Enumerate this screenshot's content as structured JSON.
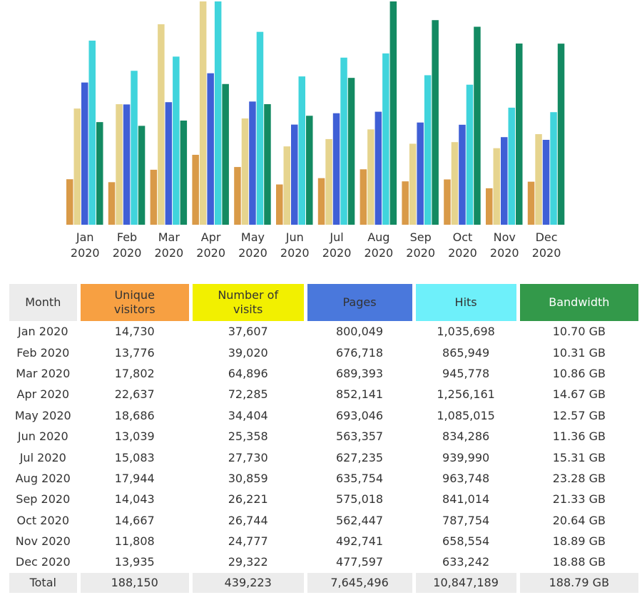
{
  "chart_data": {
    "type": "bar",
    "categories": [
      "Jan 2020",
      "Feb 2020",
      "Mar 2020",
      "Apr 2020",
      "May 2020",
      "Jun 2020",
      "Jul 2020",
      "Aug 2020",
      "Sep 2020",
      "Oct 2020",
      "Nov 2020",
      "Dec 2020"
    ],
    "series": [
      {
        "name": "Unique visitors",
        "color": "#d99a48",
        "header_color": "#f7a042",
        "values": [
          14730,
          13776,
          17802,
          22637,
          18686,
          13039,
          15083,
          17944,
          14043,
          14667,
          11808,
          13935
        ],
        "value_labels": [
          "14,730",
          "13,776",
          "17,802",
          "22,637",
          "18,686",
          "13,039",
          "15,083",
          "17,944",
          "14,043",
          "14,667",
          "11,808",
          "13,935"
        ]
      },
      {
        "name": "Number of visits",
        "color": "#e6d48e",
        "header_color": "#f2f000",
        "values": [
          37607,
          39020,
          64896,
          72285,
          34404,
          25358,
          27730,
          30859,
          26221,
          26744,
          24777,
          29322
        ],
        "value_labels": [
          "37,607",
          "39,020",
          "64,896",
          "72,285",
          "34,404",
          "25,358",
          "27,730",
          "30,859",
          "26,221",
          "26,744",
          "24,777",
          "29,322"
        ]
      },
      {
        "name": "Pages",
        "color": "#3f5fd6",
        "header_color": "#4a78dc",
        "values": [
          800049,
          676718,
          689393,
          852141,
          693046,
          563357,
          627235,
          635754,
          575018,
          562447,
          492741,
          477597
        ],
        "value_labels": [
          "800,049",
          "676,718",
          "689,393",
          "852,141",
          "693,046",
          "563,357",
          "627,235",
          "635,754",
          "575,018",
          "562,447",
          "492,741",
          "477,597"
        ]
      },
      {
        "name": "Hits",
        "color": "#40d4dc",
        "header_color": "#6ef0fa",
        "values": [
          1035698,
          865949,
          945778,
          1256161,
          1085015,
          834286,
          939990,
          963748,
          841014,
          787754,
          658554,
          633242
        ],
        "value_labels": [
          "1,035,698",
          "865,949",
          "945,778",
          "1,256,161",
          "1,085,015",
          "834,286",
          "939,990",
          "963,748",
          "841,014",
          "787,754",
          "658,554",
          "633,242"
        ]
      },
      {
        "name": "Bandwidth",
        "color": "#138a62",
        "header_color": "#33994a",
        "values": [
          10.7,
          10.31,
          10.86,
          14.67,
          12.57,
          11.36,
          15.31,
          23.28,
          21.33,
          20.64,
          18.89,
          18.88
        ],
        "value_labels": [
          "10.70 GB",
          "10.31 GB",
          "10.86 GB",
          "14.67 GB",
          "12.57 GB",
          "11.36 GB",
          "15.31 GB",
          "23.28 GB",
          "21.33 GB",
          "20.64 GB",
          "18.89 GB",
          "18.88 GB"
        ]
      }
    ]
  },
  "table": {
    "month_header": "Month",
    "total_label": "Total",
    "totals": [
      "188,150",
      "439,223",
      "7,645,496",
      "10,847,189",
      "188.79 GB"
    ]
  }
}
